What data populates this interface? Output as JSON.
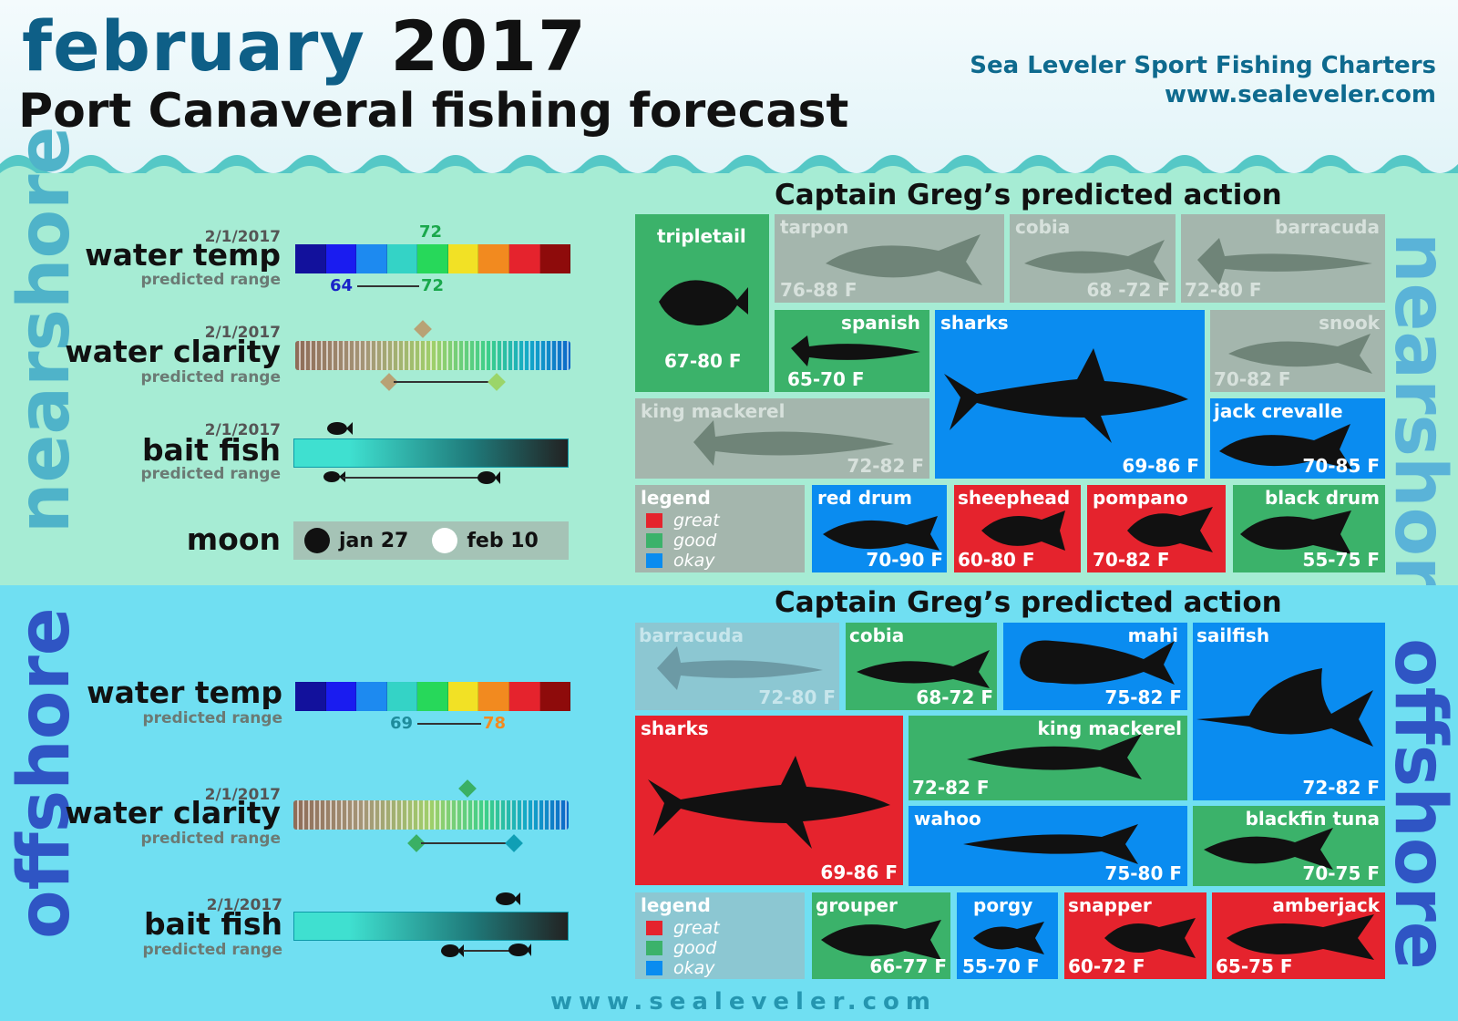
{
  "header": {
    "month": "february",
    "year": "2017",
    "subtitle": "Port Canaveral fishing forecast",
    "brand": "Sea Leveler Sport Fishing Charters",
    "url": "www.sealeveler.com"
  },
  "colors": {
    "great": "#e5232d",
    "good": "#3bb26a",
    "okay": "#0a8cf0",
    "temp_scale": [
      "#12119c",
      "#1a1cf0",
      "#1d8af0",
      "#34d3c6",
      "#27d85a",
      "#f2e125",
      "#f28a1f",
      "#e5232d",
      "#8e0b0b"
    ]
  },
  "nearshore": {
    "label": "nearshore",
    "water_temp": {
      "date": "2/1/2017",
      "label": "water temp",
      "pred": "predicted range",
      "current": "72",
      "low": "64",
      "high": "72"
    },
    "water_clarity": {
      "date": "2/1/2017",
      "label": "water clarity",
      "pred": "predicted range"
    },
    "bait_fish": {
      "date": "2/1/2017",
      "label": "bait fish",
      "pred": "predicted range"
    },
    "moon": {
      "label": "moon",
      "new": "jan 27",
      "full": "feb 10"
    },
    "action_title": "Captain Greg’s predicted action",
    "tiles": [
      {
        "name": "tripletail",
        "temp": "67-80 F",
        "rating": "good"
      },
      {
        "name": "tarpon",
        "temp": "76-88 F",
        "rating": "none"
      },
      {
        "name": "cobia",
        "temp": "68 -72 F",
        "rating": "none"
      },
      {
        "name": "barracuda",
        "temp": "72-80 F",
        "rating": "none"
      },
      {
        "name": "spanish",
        "temp": "65-70 F",
        "rating": "good"
      },
      {
        "name": "sharks",
        "temp": "69-86 F",
        "rating": "okay"
      },
      {
        "name": "snook",
        "temp": "70-82 F",
        "rating": "none"
      },
      {
        "name": "king mackerel",
        "temp": "72-82 F",
        "rating": "none"
      },
      {
        "name": "jack crevalle",
        "temp": "70-85 F",
        "rating": "okay"
      },
      {
        "name": "red drum",
        "temp": "70-90 F",
        "rating": "okay"
      },
      {
        "name": "sheephead",
        "temp": "60-80 F",
        "rating": "great"
      },
      {
        "name": "pompano",
        "temp": "70-82 F",
        "rating": "great"
      },
      {
        "name": "black drum",
        "temp": "55-75 F",
        "rating": "good"
      }
    ],
    "legend": {
      "title": "legend",
      "great": "great",
      "good": "good",
      "okay": "okay"
    }
  },
  "offshore": {
    "label": "offshore",
    "water_temp": {
      "label": "water temp",
      "pred": "predicted range",
      "low": "69",
      "high": "78"
    },
    "water_clarity": {
      "date": "2/1/2017",
      "label": "water clarity",
      "pred": "predicted range"
    },
    "bait_fish": {
      "date": "2/1/2017",
      "label": "bait fish",
      "pred": "predicted range"
    },
    "action_title": "Captain Greg’s predicted action",
    "tiles": [
      {
        "name": "barracuda",
        "temp": "72-80 F",
        "rating": "none"
      },
      {
        "name": "cobia",
        "temp": "68-72 F",
        "rating": "good"
      },
      {
        "name": "mahi",
        "temp": "75-82 F",
        "rating": "okay"
      },
      {
        "name": "sailfish",
        "temp": "72-82 F",
        "rating": "okay"
      },
      {
        "name": "sharks",
        "temp": "69-86 F",
        "rating": "great"
      },
      {
        "name": "king mackerel",
        "temp": "72-82 F",
        "rating": "good"
      },
      {
        "name": "wahoo",
        "temp": "75-80 F",
        "rating": "okay"
      },
      {
        "name": "blackfin tuna",
        "temp": "70-75 F",
        "rating": "good"
      },
      {
        "name": "grouper",
        "temp": "66-77 F",
        "rating": "good"
      },
      {
        "name": "porgy",
        "temp": "55-70 F",
        "rating": "okay"
      },
      {
        "name": "snapper",
        "temp": "60-72 F",
        "rating": "great"
      },
      {
        "name": "amberjack",
        "temp": "65-75 F",
        "rating": "great"
      }
    ],
    "legend": {
      "title": "legend",
      "great": "great",
      "good": "good",
      "okay": "okay"
    }
  },
  "footer": "www.sealeveler.com"
}
